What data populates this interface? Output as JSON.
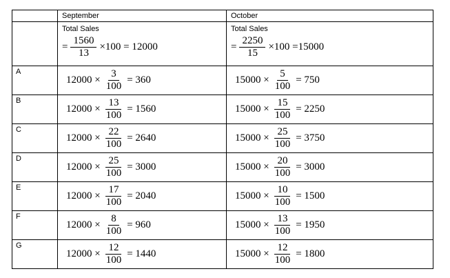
{
  "page": {
    "background_color": "#ffffff",
    "text_color": "#000000",
    "border_color": "#000000"
  },
  "table": {
    "headers": {
      "september": "September",
      "october": "October"
    },
    "total": {
      "september": {
        "label": "Total Sales",
        "prefix": "=",
        "numerator": "1560",
        "denominator": "13",
        "suffix": "×100 = 12000"
      },
      "october": {
        "label": "Total Sales",
        "prefix": "=",
        "numerator": "2250",
        "denominator": "15",
        "suffix": "×100 =15000"
      }
    },
    "rows": [
      {
        "label": "A",
        "september": {
          "prefix": "12000 ×",
          "numerator": "3",
          "denominator": "100",
          "suffix": "= 360"
        },
        "october": {
          "prefix": "15000 ×",
          "numerator": "5",
          "denominator": "100",
          "suffix": "= 750"
        }
      },
      {
        "label": "B",
        "september": {
          "prefix": "12000 ×",
          "numerator": "13",
          "denominator": "100",
          "suffix": "= 1560"
        },
        "october": {
          "prefix": "15000 ×",
          "numerator": "15",
          "denominator": "100",
          "suffix": "= 2250"
        }
      },
      {
        "label": "C",
        "september": {
          "prefix": "12000 ×",
          "numerator": "22",
          "denominator": "100",
          "suffix": "= 2640"
        },
        "october": {
          "prefix": "15000 ×",
          "numerator": "25",
          "denominator": "100",
          "suffix": "= 3750"
        }
      },
      {
        "label": "D",
        "september": {
          "prefix": "12000 ×",
          "numerator": "25",
          "denominator": "100",
          "suffix": "= 3000"
        },
        "october": {
          "prefix": "15000 ×",
          "numerator": "20",
          "denominator": "100",
          "suffix": "= 3000"
        }
      },
      {
        "label": "E",
        "september": {
          "prefix": "12000 ×",
          "numerator": "17",
          "denominator": "100",
          "suffix": "= 2040"
        },
        "october": {
          "prefix": "15000 ×",
          "numerator": "10",
          "denominator": "100",
          "suffix": "= 1500"
        }
      },
      {
        "label": "F",
        "september": {
          "prefix": "12000 ×",
          "numerator": "8",
          "denominator": "100",
          "suffix": "= 960"
        },
        "october": {
          "prefix": "15000 ×",
          "numerator": "13",
          "denominator": "100",
          "suffix": "= 1950"
        }
      },
      {
        "label": "G",
        "september": {
          "prefix": "12000 ×",
          "numerator": "12",
          "denominator": "100",
          "suffix": "= 1440"
        },
        "october": {
          "prefix": "15000 ×",
          "numerator": "12",
          "denominator": "100",
          "suffix": "= 1800"
        }
      }
    ]
  }
}
